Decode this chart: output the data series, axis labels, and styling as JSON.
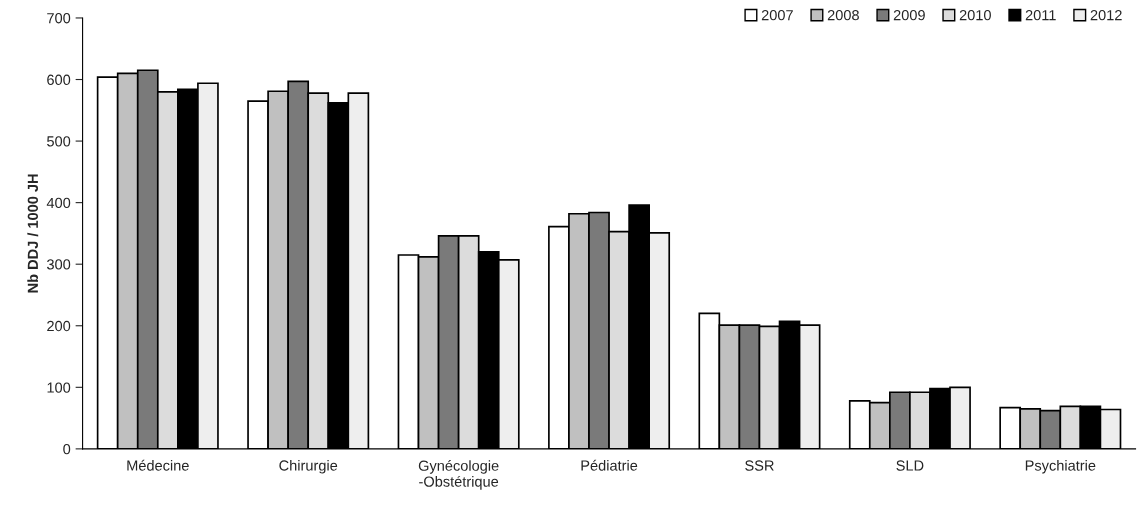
{
  "chart_data": {
    "type": "bar",
    "ylabel": "Nb DDJ / 1000 JH",
    "categories": [
      "Médecine",
      "Chirurgie",
      "Gynécologie\n-Obstétrique",
      "Pédiatrie",
      "SSR",
      "SLD",
      "Psychiatrie"
    ],
    "series": [
      {
        "name": "2007",
        "color": "#ffffff",
        "values": [
          604,
          565,
          315,
          361,
          220,
          78,
          67
        ]
      },
      {
        "name": "2008",
        "color": "#c0c0c0",
        "values": [
          610,
          581,
          312,
          382,
          201,
          75,
          65
        ]
      },
      {
        "name": "2009",
        "color": "#7a7a7a",
        "values": [
          615,
          597,
          346,
          384,
          201,
          92,
          62
        ]
      },
      {
        "name": "2010",
        "color": "#dcdcdc",
        "values": [
          580,
          578,
          346,
          353,
          199,
          92,
          69
        ]
      },
      {
        "name": "2011",
        "color": "#000000",
        "values": [
          584,
          562,
          320,
          396,
          207,
          98,
          69
        ]
      },
      {
        "name": "2012",
        "color": "#eeeeee",
        "values": [
          594,
          578,
          307,
          351,
          201,
          100,
          64
        ]
      }
    ],
    "ylim": [
      0,
      700
    ],
    "yticks": [
      0,
      100,
      200,
      300,
      400,
      500,
      600,
      700
    ],
    "grid": false,
    "legend": "top right"
  }
}
